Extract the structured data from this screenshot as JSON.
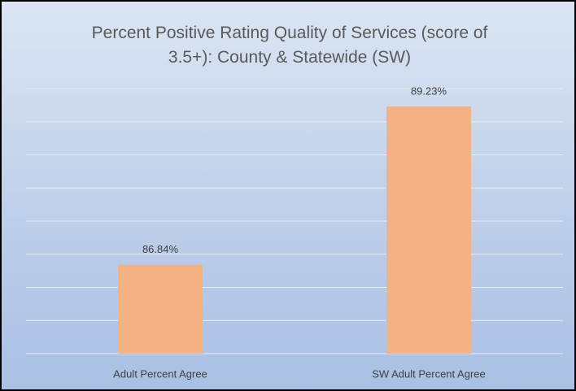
{
  "chart_data": {
    "type": "bar",
    "title": "Percent Positive Rating Quality of Services (score of 3.5+): County & Statewide (SW)",
    "categories": [
      "Adult Percent Agree",
      "SW Adult Percent Agree"
    ],
    "values": [
      86.84,
      89.23
    ],
    "value_labels": [
      "86.84%",
      "89.23%"
    ],
    "color": "#f4b183",
    "ylim": [
      85.5,
      89.5
    ],
    "yticks": [
      85.5,
      86,
      86.5,
      87,
      87.5,
      88,
      88.5,
      89,
      89.5
    ],
    "grid": true
  }
}
